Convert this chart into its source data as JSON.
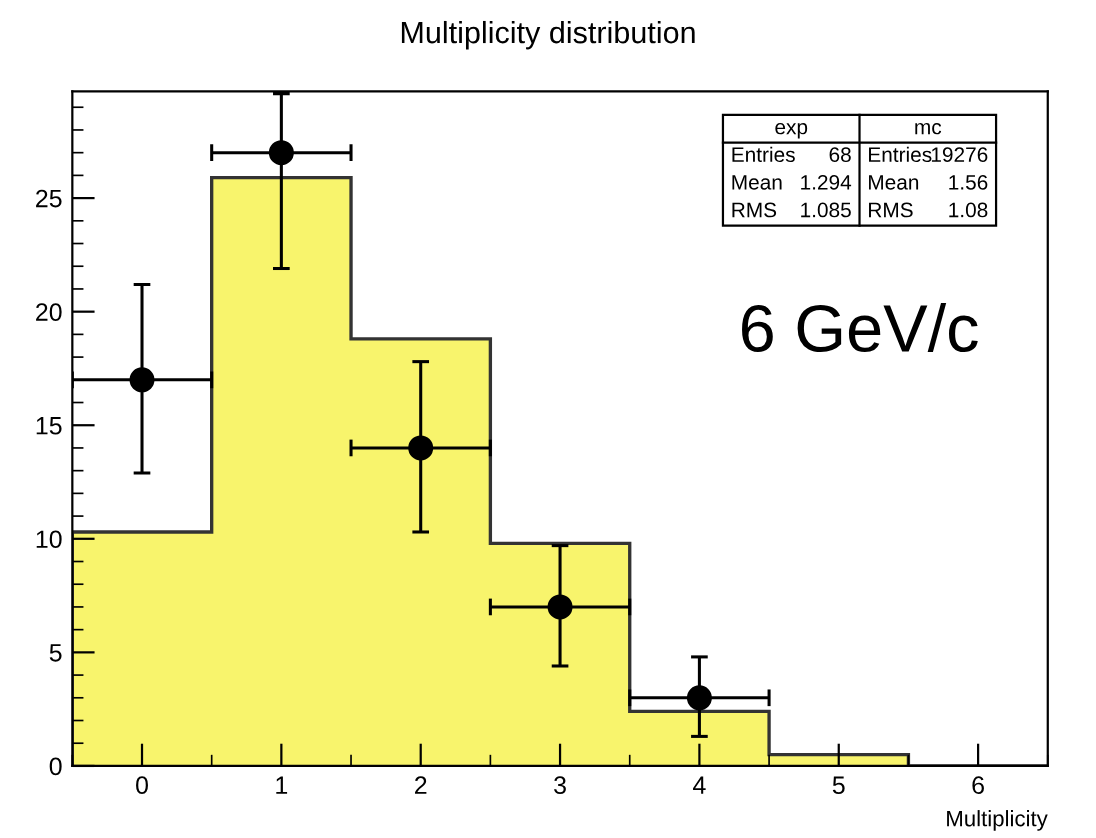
{
  "chart_data": {
    "type": "histogram",
    "title": "Multiplicity distribution",
    "xlabel": "Multiplicity",
    "bins": [
      -0.5,
      0.5,
      1.5,
      2.5,
      3.5,
      4.5,
      5.5,
      6.5
    ],
    "series": [
      {
        "color": "#f8f46c",
        "values": [
          10.3,
          25.9,
          18.8,
          9.8,
          2.4,
          0.5,
          0
        ]
      },
      {
        "type": "scatter",
        "color": "#000000",
        "x": [
          0,
          1,
          2,
          3,
          4
        ],
        "values": [
          17,
          27,
          14,
          7,
          3
        ],
        "errors": [
          [
            12.9,
            21.2
          ],
          [
            21.9,
            29.6
          ],
          [
            10.3,
            17.8
          ],
          [
            4.4,
            9.7
          ],
          [
            1.3,
            4.8
          ]
        ],
        "xerrors": [
          0.5,
          0.5,
          0.5,
          0.5,
          0.5
        ]
      }
    ],
    "xlim": [
      -0.5,
      6.5
    ],
    "ylim": [
      0,
      29.7
    ],
    "xticks": [
      0,
      1,
      2,
      3,
      4,
      5,
      6
    ],
    "yticks": [
      0,
      5,
      10,
      15,
      20,
      25
    ],
    "grid": false,
    "marker": "circle",
    "annotations": [
      "exp",
      "mc",
      "Entries",
      "68",
      "Entries",
      "19276",
      "Mean",
      "1.294",
      "Mean",
      "1.56",
      "RMS",
      "1.085",
      "RMS",
      "1.08",
      "6 GeV/c"
    ]
  }
}
